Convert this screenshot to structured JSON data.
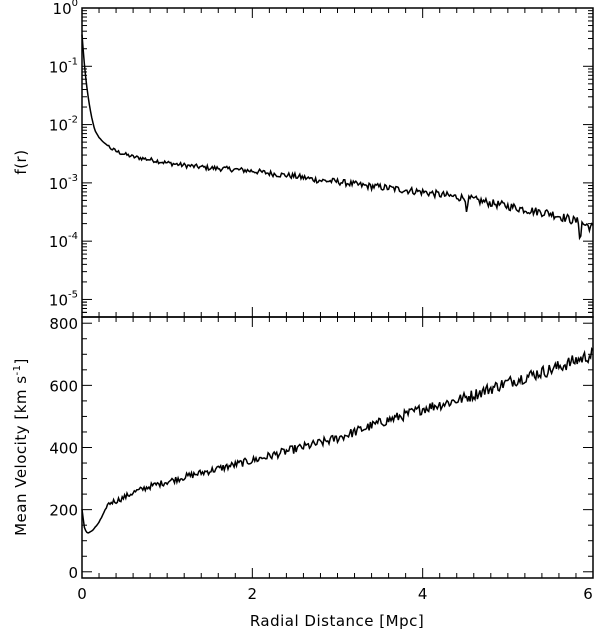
{
  "chart_data": [
    {
      "type": "line",
      "ylabel": "f(r)",
      "yscale": "log",
      "ylim": [
        5e-06,
        1
      ],
      "xlim": [
        0,
        6
      ],
      "x_ticks": [
        "0",
        "2",
        "4",
        "6"
      ],
      "y_ticks": [
        {
          "base": "10",
          "exp": "0"
        },
        {
          "base": "10",
          "exp": "-1"
        },
        {
          "base": "10",
          "exp": "-2"
        },
        {
          "base": "10",
          "exp": "-3"
        },
        {
          "base": "10",
          "exp": "-4"
        },
        {
          "base": "10",
          "exp": "-5"
        }
      ],
      "series": [
        {
          "x": [
            0.0,
            0.02,
            0.04,
            0.06,
            0.08,
            0.1,
            0.12,
            0.15,
            0.2,
            0.25,
            0.3,
            0.35,
            0.4,
            0.5,
            0.6,
            0.8,
            1.0,
            1.2,
            1.5,
            1.8,
            2.0,
            2.3,
            2.5,
            2.8,
            3.0,
            3.3,
            3.5,
            3.8,
            4.0,
            4.3,
            4.5,
            4.8,
            5.0,
            5.3,
            5.5,
            5.8,
            6.0
          ],
          "y": [
            0.35,
            0.15,
            0.07,
            0.04,
            0.025,
            0.017,
            0.012,
            0.008,
            0.006,
            0.005,
            0.0044,
            0.0038,
            0.0035,
            0.0031,
            0.0028,
            0.0025,
            0.0022,
            0.002,
            0.0018,
            0.0017,
            0.0016,
            0.0014,
            0.0013,
            0.0011,
            0.00105,
            0.0009,
            0.00085,
            0.00075,
            0.0007,
            0.0006,
            0.00055,
            0.00045,
            0.0004,
            0.00033,
            0.0003,
            0.00022,
            0.00017
          ]
        }
      ]
    },
    {
      "type": "line",
      "xlabel": "Radial Distance [Mpc]",
      "ylabel_parts": {
        "main": "Mean Velocity [km s",
        "exp": "-1",
        "close": "]"
      },
      "xlim": [
        0,
        6
      ],
      "ylim": [
        -20,
        820
      ],
      "x_ticks": [
        "0",
        "2",
        "4",
        "6"
      ],
      "y_ticks": [
        "0",
        "200",
        "400",
        "600",
        "800"
      ],
      "series": [
        {
          "x": [
            0.0,
            0.03,
            0.06,
            0.1,
            0.15,
            0.2,
            0.25,
            0.3,
            0.35,
            0.4,
            0.5,
            0.6,
            0.8,
            1.0,
            1.2,
            1.5,
            1.8,
            2.0,
            2.3,
            2.5,
            2.8,
            3.0,
            3.3,
            3.5,
            3.8,
            4.0,
            4.3,
            4.5,
            4.8,
            5.0,
            5.3,
            5.5,
            5.8,
            6.0
          ],
          "y": [
            200,
            140,
            125,
            128,
            140,
            160,
            185,
            215,
            225,
            228,
            240,
            255,
            275,
            290,
            305,
            325,
            345,
            358,
            380,
            395,
            415,
            430,
            460,
            480,
            505,
            525,
            545,
            560,
            590,
            610,
            635,
            650,
            680,
            700
          ]
        }
      ]
    }
  ]
}
